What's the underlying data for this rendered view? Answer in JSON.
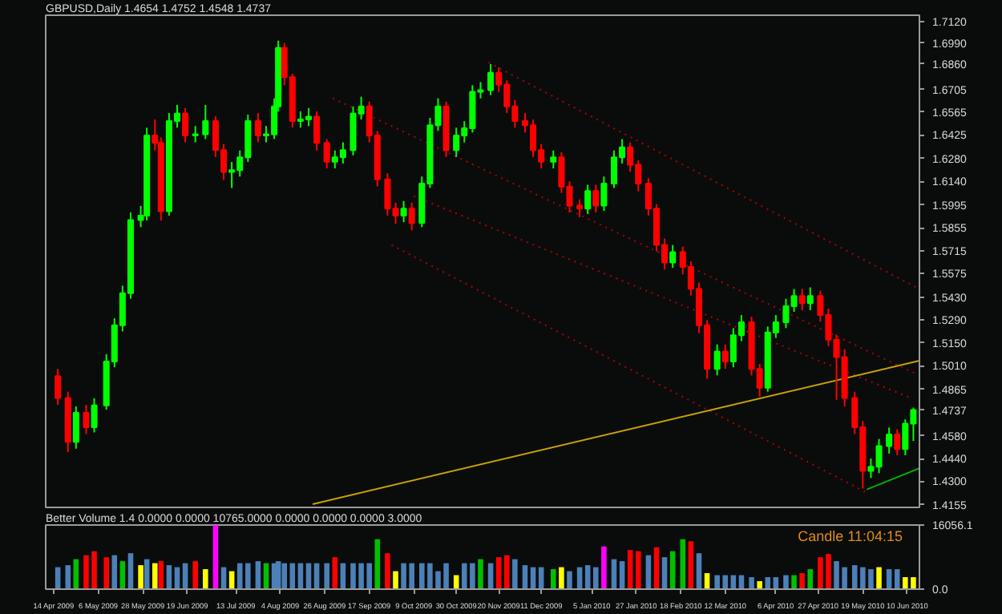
{
  "chart_data": [
    {
      "type": "candlestick",
      "title": "GBPUSD,Daily  1.4654 1.4752 1.4548 1.4737",
      "tick_labels": "y",
      "xlim": [
        "2009-04-10",
        "2010-06-16"
      ],
      "ylim": [
        1.414,
        1.716
      ],
      "yticks": [
        {
          "value": 1.712,
          "label": "1.7120"
        },
        {
          "value": 1.699,
          "label": "1.6990"
        },
        {
          "value": 1.686,
          "label": "1.6860"
        },
        1.6705,
        1.6565,
        1.6425,
        {
          "value": 1.628,
          "label": "1.6280"
        },
        {
          "value": 1.614,
          "label": "1.6140"
        },
        1.5995,
        1.5855,
        1.5715,
        1.5575,
        {
          "value": 1.543,
          "label": "1.5430"
        },
        {
          "value": 1.529,
          "label": "1.5290"
        },
        {
          "value": 1.515,
          "label": "1.5150"
        },
        {
          "value": 1.501,
          "label": "1.5010"
        },
        1.4865,
        1.4737,
        {
          "value": 1.458,
          "label": "1.4580"
        },
        {
          "value": 1.444,
          "label": "1.4440"
        },
        {
          "value": 1.43,
          "label": "1.4300"
        },
        1.4155
      ],
      "x": [
        "2009-04-16",
        "2009-04-21",
        "2009-04-25",
        "2009-04-30",
        "2009-05-04",
        "2009-05-10",
        "2009-05-14",
        "2009-05-18",
        "2009-05-22",
        "2009-05-27",
        "2009-05-30",
        "2009-06-03",
        "2009-06-06",
        "2009-06-10",
        "2009-06-14",
        "2009-06-18",
        "2009-06-23",
        "2009-06-28",
        "2009-07-03",
        "2009-07-07",
        "2009-07-11",
        "2009-07-15",
        "2009-07-19",
        "2009-07-24",
        "2009-07-28",
        "2009-08-01",
        "2009-08-03",
        "2009-08-06",
        "2009-08-10",
        "2009-08-14",
        "2009-08-18",
        "2009-08-22",
        "2009-08-27",
        "2009-08-31",
        "2009-09-04",
        "2009-09-09",
        "2009-09-13",
        "2009-09-17",
        "2009-09-21",
        "2009-09-26",
        "2009-09-30",
        "2009-10-04",
        "2009-10-08",
        "2009-10-13",
        "2009-10-17",
        "2009-10-21",
        "2009-10-25",
        "2009-10-30",
        "2009-11-03",
        "2009-11-07",
        "2009-11-11",
        "2009-11-16",
        "2009-11-20",
        "2009-11-24",
        "2009-11-28",
        "2009-12-03",
        "2009-12-07",
        "2009-12-11",
        "2009-12-17",
        "2009-12-21",
        "2009-12-25",
        "2009-12-30",
        "2010-01-03",
        "2010-01-07",
        "2010-01-11",
        "2010-01-16",
        "2010-01-20",
        "2010-01-24",
        "2010-01-28",
        "2010-02-02",
        "2010-02-06",
        "2010-02-10",
        "2010-02-14",
        "2010-02-19",
        "2010-02-23",
        "2010-02-27",
        "2010-03-03",
        "2010-03-08",
        "2010-03-12",
        "2010-03-16",
        "2010-03-20",
        "2010-03-25",
        "2010-03-29",
        "2010-04-02",
        "2010-04-06",
        "2010-04-11",
        "2010-04-15",
        "2010-04-19",
        "2010-04-23",
        "2010-04-28",
        "2010-05-02",
        "2010-05-06",
        "2010-05-10",
        "2010-05-15",
        "2010-05-19",
        "2010-05-23",
        "2010-05-27",
        "2010-06-01",
        "2010-06-05",
        "2010-06-09",
        "2010-06-13"
      ],
      "ohlc": [
        [
          1.4945,
          1.499,
          1.477,
          1.4811
        ],
        [
          1.4811,
          1.485,
          1.448,
          1.4542
        ],
        [
          1.4542,
          1.476,
          1.45,
          1.4721
        ],
        [
          1.4721,
          1.477,
          1.459,
          1.4632
        ],
        [
          1.4632,
          1.481,
          1.46,
          1.4766
        ],
        [
          1.4766,
          1.508,
          1.474,
          1.5035
        ],
        [
          1.5035,
          1.53,
          1.5,
          1.5258
        ],
        [
          1.5258,
          1.55,
          1.522,
          1.5455
        ],
        [
          1.5455,
          1.595,
          1.542,
          1.5903
        ],
        [
          1.5903,
          1.599,
          1.586,
          1.593
        ],
        [
          1.593,
          1.647,
          1.59,
          1.6422
        ],
        [
          1.6422,
          1.652,
          1.633,
          1.6377
        ],
        [
          1.6377,
          1.641,
          1.59,
          1.5957
        ],
        [
          1.5957,
          1.656,
          1.593,
          1.6511
        ],
        [
          1.6511,
          1.661,
          1.647,
          1.6556
        ],
        [
          1.6556,
          1.659,
          1.638,
          1.6422
        ],
        [
          1.6422,
          1.648,
          1.638,
          1.643
        ],
        [
          1.643,
          1.661,
          1.64,
          1.6511
        ],
        [
          1.6511,
          1.654,
          1.629,
          1.6332
        ],
        [
          1.6332,
          1.637,
          1.615,
          1.6198
        ],
        [
          1.6198,
          1.626,
          1.61,
          1.621
        ],
        [
          1.621,
          1.633,
          1.617,
          1.6288
        ],
        [
          1.6288,
          1.655,
          1.626,
          1.6511
        ],
        [
          1.6511,
          1.656,
          1.638,
          1.6422
        ],
        [
          1.6422,
          1.648,
          1.638,
          1.643
        ],
        [
          1.643,
          1.665,
          1.64,
          1.6601
        ],
        [
          1.6601,
          1.7004,
          1.657,
          1.6959
        ],
        [
          1.6959,
          1.699,
          1.673,
          1.678
        ],
        [
          1.678,
          1.68,
          1.647,
          1.6511
        ],
        [
          1.6511,
          1.657,
          1.647,
          1.652
        ],
        [
          1.652,
          1.659,
          1.648,
          1.6538
        ],
        [
          1.6538,
          1.657,
          1.633,
          1.6377
        ],
        [
          1.6377,
          1.64,
          1.622,
          1.6261
        ],
        [
          1.6261,
          1.633,
          1.622,
          1.6288
        ],
        [
          1.6288,
          1.638,
          1.625,
          1.6332
        ],
        [
          1.6332,
          1.66,
          1.63,
          1.6556
        ],
        [
          1.6556,
          1.666,
          1.652,
          1.6601
        ],
        [
          1.6601,
          1.663,
          1.638,
          1.6422
        ],
        [
          1.6422,
          1.645,
          1.611,
          1.6153
        ],
        [
          1.6153,
          1.619,
          1.593,
          1.5974
        ],
        [
          1.5974,
          1.601,
          1.588,
          1.593
        ],
        [
          1.593,
          1.602,
          1.589,
          1.5974
        ],
        [
          1.5974,
          1.601,
          1.584,
          1.5885
        ],
        [
          1.5885,
          1.617,
          1.586,
          1.6127
        ],
        [
          1.6127,
          1.653,
          1.61,
          1.6485
        ],
        [
          1.6485,
          1.665,
          1.645,
          1.6601
        ],
        [
          1.6601,
          1.663,
          1.629,
          1.6332
        ],
        [
          1.6332,
          1.647,
          1.629,
          1.6422
        ],
        [
          1.6422,
          1.651,
          1.638,
          1.6467
        ],
        [
          1.6467,
          1.673,
          1.644,
          1.669
        ],
        [
          1.669,
          1.675,
          1.665,
          1.67
        ],
        [
          1.67,
          1.686,
          1.667,
          1.6807
        ],
        [
          1.6807,
          1.684,
          1.669,
          1.6735
        ],
        [
          1.6735,
          1.676,
          1.656,
          1.6601
        ],
        [
          1.6601,
          1.664,
          1.647,
          1.6511
        ],
        [
          1.6511,
          1.656,
          1.644,
          1.6485
        ],
        [
          1.6485,
          1.652,
          1.629,
          1.6332
        ],
        [
          1.6332,
          1.637,
          1.622,
          1.6261
        ],
        [
          1.6261,
          1.633,
          1.622,
          1.6288
        ],
        [
          1.6288,
          1.632,
          1.607,
          1.6109
        ],
        [
          1.6109,
          1.614,
          1.595,
          1.5992
        ],
        [
          1.5992,
          1.603,
          1.592,
          1.5974
        ],
        [
          1.5974,
          1.612,
          1.594,
          1.6082
        ],
        [
          1.6082,
          1.612,
          1.595,
          1.5992
        ],
        [
          1.5992,
          1.617,
          1.596,
          1.6127
        ],
        [
          1.6127,
          1.633,
          1.61,
          1.6288
        ],
        [
          1.6288,
          1.64,
          1.625,
          1.635
        ],
        [
          1.635,
          1.638,
          1.62,
          1.6243
        ],
        [
          1.6243,
          1.627,
          1.608,
          1.6127
        ],
        [
          1.6127,
          1.616,
          1.593,
          1.5974
        ],
        [
          1.5974,
          1.6,
          1.571,
          1.5751
        ],
        [
          1.5751,
          1.579,
          1.56,
          1.5643
        ],
        [
          1.5643,
          1.575,
          1.561,
          1.5706
        ],
        [
          1.5706,
          1.574,
          1.557,
          1.5616
        ],
        [
          1.5616,
          1.565,
          1.544,
          1.5482
        ],
        [
          1.5482,
          1.552,
          1.521,
          1.5258
        ],
        [
          1.5258,
          1.529,
          1.493,
          1.499
        ],
        [
          1.499,
          1.514,
          1.495,
          1.5097
        ],
        [
          1.5097,
          1.514,
          1.499,
          1.5035
        ],
        [
          1.5035,
          1.524,
          1.5,
          1.5196
        ],
        [
          1.5196,
          1.532,
          1.516,
          1.5276
        ],
        [
          1.5276,
          1.531,
          1.495,
          1.499
        ],
        [
          1.499,
          1.502,
          1.482,
          1.4874
        ],
        [
          1.4874,
          1.525,
          1.485,
          1.5214
        ],
        [
          1.5214,
          1.532,
          1.518,
          1.5276
        ],
        [
          1.5276,
          1.542,
          1.524,
          1.5375
        ],
        [
          1.5375,
          1.548,
          1.534,
          1.5437
        ],
        [
          1.5437,
          1.548,
          1.535,
          1.5393
        ],
        [
          1.5393,
          1.549,
          1.535,
          1.5437
        ],
        [
          1.5437,
          1.547,
          1.528,
          1.5321
        ],
        [
          1.5321,
          1.536,
          1.513,
          1.5169
        ],
        [
          1.5169,
          1.52,
          1.48,
          1.5062
        ],
        [
          1.5062,
          1.511,
          1.476,
          1.4811
        ],
        [
          1.4811,
          1.485,
          1.459,
          1.4632
        ],
        [
          1.4632,
          1.467,
          1.4256,
          1.4364
        ],
        [
          1.4364,
          1.444,
          1.432,
          1.439
        ],
        [
          1.439,
          1.456,
          1.435,
          1.4516
        ],
        [
          1.4516,
          1.463,
          1.447,
          1.4587
        ],
        [
          1.4587,
          1.462,
          1.446,
          1.4498
        ],
        [
          1.4498,
          1.468,
          1.446,
          1.4654
        ],
        [
          1.4654,
          1.4752,
          1.4548,
          1.4737
        ]
      ],
      "colors": [
        "#ff0000",
        "#ff0000",
        "#00ff00",
        "#ff0000",
        "#00ff00",
        "#00ff00",
        "#00ff00",
        "#00ff00",
        "#00ff00",
        "#00ff00",
        "#00ff00",
        "#ff0000",
        "#ff0000",
        "#00ff00",
        "#00ff00",
        "#ff0000",
        "#00ff00",
        "#00ff00",
        "#ff0000",
        "#ff0000",
        "#00ff00",
        "#00ff00",
        "#00ff00",
        "#ff0000",
        "#00ff00",
        "#00ff00",
        "#00ff00",
        "#ff0000",
        "#ff0000",
        "#00ff00",
        "#00ff00",
        "#ff0000",
        "#ff0000",
        "#00ff00",
        "#00ff00",
        "#00ff00",
        "#00ff00",
        "#ff0000",
        "#ff0000",
        "#ff0000",
        "#ff0000",
        "#00ff00",
        "#ff0000",
        "#00ff00",
        "#00ff00",
        "#00ff00",
        "#ff0000",
        "#00ff00",
        "#00ff00",
        "#00ff00",
        "#00ff00",
        "#00ff00",
        "#ff0000",
        "#ff0000",
        "#ff0000",
        "#ff0000",
        "#ff0000",
        "#ff0000",
        "#00ff00",
        "#ff0000",
        "#ff0000",
        "#ff0000",
        "#00ff00",
        "#ff0000",
        "#00ff00",
        "#00ff00",
        "#00ff00",
        "#ff0000",
        "#ff0000",
        "#ff0000",
        "#ff0000",
        "#ff0000",
        "#00ff00",
        "#ff0000",
        "#ff0000",
        "#ff0000",
        "#ff0000",
        "#00ff00",
        "#ff0000",
        "#00ff00",
        "#00ff00",
        "#ff0000",
        "#ff0000",
        "#00ff00",
        "#00ff00",
        "#00ff00",
        "#00ff00",
        "#ff0000",
        "#00ff00",
        "#ff0000",
        "#ff0000",
        "#ff0000",
        "#ff0000",
        "#ff0000",
        "#ff0000",
        "#00ff00",
        "#00ff00",
        "#00ff00",
        "#ff0000",
        "#00ff00",
        "#00ff00"
      ],
      "series": [
        {
          "type": "line",
          "x": [
            "2009-11-15",
            "2010-06-16"
          ],
          "values": [
            1.687,
            1.548
          ],
          "color": "#b00000",
          "line_style": "dotted"
        },
        {
          "type": "line",
          "x": [
            "2009-08-30",
            "2010-06-16"
          ],
          "values": [
            1.665,
            1.495
          ],
          "color": "#b00000",
          "line_style": "dotted"
        },
        {
          "type": "line",
          "x": [
            "2009-10-09",
            "2010-06-12"
          ],
          "values": [
            1.605,
            1.481
          ],
          "color": "#b00000",
          "line_style": "dotted"
        },
        {
          "type": "line",
          "x": [
            "2009-09-28",
            "2010-05-21"
          ],
          "values": [
            1.575,
            1.423
          ],
          "color": "#b00000",
          "line_style": "dotted"
        },
        {
          "type": "line",
          "x": [
            "2009-08-20",
            "2010-06-16"
          ],
          "values": [
            1.416,
            1.504
          ],
          "color": "#c8a000",
          "line_style": "solid"
        },
        {
          "type": "line",
          "x": [
            "2010-05-21",
            "2010-06-16"
          ],
          "values": [
            1.425,
            1.438
          ],
          "color": "#00b000",
          "line_style": "solid"
        }
      ]
    },
    {
      "type": "bar",
      "title": "Better Volume 1.4 0.0000 0.0000 10765.0000 0.0000 0.0000 0.0000 3.0000",
      "annotations": [
        "Candle  11:04:15"
      ],
      "xlim": [
        "2009-04-10",
        "2010-06-16"
      ],
      "xticks": [
        {
          "value": "2009-04-14",
          "label": "14 Apr 2009"
        },
        {
          "value": "2009-05-06",
          "label": "6 May 2009"
        },
        {
          "value": "2009-05-28",
          "label": "28 May 2009"
        },
        {
          "value": "2009-06-19",
          "label": "19 Jun 2009"
        },
        {
          "value": "2009-07-13",
          "label": "13 Jul 2009"
        },
        {
          "value": "2009-08-04",
          "label": "4 Aug 2009"
        },
        {
          "value": "2009-08-26",
          "label": "26 Aug 2009"
        },
        {
          "value": "2009-09-17",
          "label": "17 Sep 2009"
        },
        {
          "value": "2009-10-09",
          "label": "9 Oct 2009"
        },
        {
          "value": "2009-10-30",
          "label": "30 Oct 2009"
        },
        {
          "value": "2009-11-20",
          "label": "20 Nov 2009"
        },
        {
          "value": "2009-12-11",
          "label": "11 Dec 2009"
        },
        {
          "value": "2010-01-05",
          "label": "5 Jan 2010"
        },
        {
          "value": "2010-01-27",
          "label": "27 Jan 2010"
        },
        {
          "value": "2010-02-18",
          "label": "18 Feb 2010"
        },
        {
          "value": "2010-03-12",
          "label": "12 Mar 2010"
        },
        {
          "value": "2010-04-06",
          "label": "6 Apr 2010"
        },
        {
          "value": "2010-04-27",
          "label": "27 Apr 2010"
        },
        {
          "value": "2010-05-19",
          "label": "19 May 2010"
        },
        {
          "value": "2010-06-10",
          "label": "10 Jun 2010"
        }
      ],
      "ylim": [
        0,
        16056.1
      ],
      "yticks": [
        16056.1,
        {
          "value": 0,
          "label": "0.0"
        }
      ],
      "x": [
        "2009-04-16",
        "2009-04-21",
        "2009-04-25",
        "2009-04-30",
        "2009-05-04",
        "2009-05-10",
        "2009-05-14",
        "2009-05-18",
        "2009-05-22",
        "2009-05-27",
        "2009-05-30",
        "2009-06-03",
        "2009-06-06",
        "2009-06-10",
        "2009-06-14",
        "2009-06-18",
        "2009-06-23",
        "2009-06-28",
        "2009-07-03",
        "2009-07-07",
        "2009-07-11",
        "2009-07-15",
        "2009-07-19",
        "2009-07-24",
        "2009-07-28",
        "2009-08-01",
        "2009-08-03",
        "2009-08-06",
        "2009-08-10",
        "2009-08-14",
        "2009-08-18",
        "2009-08-22",
        "2009-08-27",
        "2009-08-31",
        "2009-09-04",
        "2009-09-09",
        "2009-09-13",
        "2009-09-17",
        "2009-09-21",
        "2009-09-26",
        "2009-09-30",
        "2009-10-04",
        "2009-10-08",
        "2009-10-13",
        "2009-10-17",
        "2009-10-21",
        "2009-10-25",
        "2009-10-30",
        "2009-11-03",
        "2009-11-07",
        "2009-11-11",
        "2009-11-16",
        "2009-11-20",
        "2009-11-24",
        "2009-11-28",
        "2009-12-03",
        "2009-12-07",
        "2009-12-11",
        "2009-12-17",
        "2009-12-21",
        "2009-12-25",
        "2009-12-30",
        "2010-01-03",
        "2010-01-07",
        "2010-01-11",
        "2010-01-16",
        "2010-01-20",
        "2010-01-24",
        "2010-01-28",
        "2010-02-02",
        "2010-02-06",
        "2010-02-10",
        "2010-02-14",
        "2010-02-19",
        "2010-02-23",
        "2010-02-27",
        "2010-03-03",
        "2010-03-08",
        "2010-03-12",
        "2010-03-16",
        "2010-03-20",
        "2010-03-25",
        "2010-03-29",
        "2010-04-02",
        "2010-04-06",
        "2010-04-11",
        "2010-04-15",
        "2010-04-19",
        "2010-04-23",
        "2010-04-28",
        "2010-05-02",
        "2010-05-06",
        "2010-05-10",
        "2010-05-15",
        "2010-05-19",
        "2010-05-23",
        "2010-05-27",
        "2010-06-01",
        "2010-06-05",
        "2010-06-09",
        "2010-06-13"
      ],
      "values": [
        5500,
        6000,
        7500,
        8500,
        9500,
        8000,
        8500,
        7000,
        9000,
        6000,
        7500,
        6500,
        7000,
        6000,
        5500,
        6500,
        7000,
        5000,
        16000,
        5500,
        4500,
        6500,
        6500,
        7000,
        6500,
        6500,
        7000,
        6500,
        6500,
        6500,
        6500,
        6500,
        6500,
        8000,
        6500,
        6500,
        6500,
        6500,
        12500,
        9000,
        4500,
        6500,
        6500,
        6500,
        6500,
        4500,
        6500,
        3500,
        6500,
        6500,
        7500,
        6500,
        8000,
        8500,
        7500,
        6000,
        5500,
        5500,
        5000,
        5500,
        4500,
        5500,
        6000,
        5500,
        10700,
        7500,
        7000,
        9800,
        9500,
        8500,
        10500,
        8000,
        9500,
        12500,
        12000,
        9000,
        4000,
        3500,
        3500,
        3500,
        3500,
        3000,
        2000,
        3000,
        3000,
        3500,
        3500,
        4000,
        5000,
        8000,
        8800,
        7000,
        5500,
        6000,
        5500,
        5000,
        5500,
        5000,
        5000,
        3000,
        3000
      ],
      "colors": [
        "#4c80b8",
        "#4c80b8",
        "#00c000",
        "#ff0000",
        "#ff0000",
        "#ff0000",
        "#4c80b8",
        "#00c000",
        "#4c80b8",
        "#ffff00",
        "#4c80b8",
        "#ffff00",
        "#ff0000",
        "#4c80b8",
        "#4c80b8",
        "#4c80b8",
        "#ff0000",
        "#ffff00",
        "#ff00ff",
        "#4c80b8",
        "#ffff00",
        "#4c80b8",
        "#4c80b8",
        "#4c80b8",
        "#00c000",
        "#4c80b8",
        "#4c80b8",
        "#4c80b8",
        "#4c80b8",
        "#4c80b8",
        "#4c80b8",
        "#4c80b8",
        "#4c80b8",
        "#ff0000",
        "#4c80b8",
        "#4c80b8",
        "#4c80b8",
        "#4c80b8",
        "#00c000",
        "#ff0000",
        "#ffff00",
        "#4c80b8",
        "#4c80b8",
        "#4c80b8",
        "#4c80b8",
        "#4c80b8",
        "#4c80b8",
        "#ffff00",
        "#4c80b8",
        "#4c80b8",
        "#00c000",
        "#4c80b8",
        "#ff0000",
        "#ff0000",
        "#4c80b8",
        "#4c80b8",
        "#4c80b8",
        "#4c80b8",
        "#00c000",
        "#ffff00",
        "#4c80b8",
        "#4c80b8",
        "#4c80b8",
        "#4c80b8",
        "#ff00ff",
        "#4c80b8",
        "#4c80b8",
        "#ff0000",
        "#ff0000",
        "#4c80b8",
        "#ff0000",
        "#4c80b8",
        "#00c000",
        "#00c000",
        "#ff0000",
        "#4c80b8",
        "#ffff00",
        "#4c80b8",
        "#4c80b8",
        "#4c80b8",
        "#4c80b8",
        "#4c80b8",
        "#ffff00",
        "#4c80b8",
        "#4c80b8",
        "#4c80b8",
        "#00c000",
        "#ff0000",
        "#00c000",
        "#ff0000",
        "#ff0000",
        "#4c80b8",
        "#4c80b8",
        "#4c80b8",
        "#4c80b8",
        "#4c80b8",
        "#ffff00",
        "#4c80b8",
        "#4c80b8",
        "#ffff00",
        "#ffff00"
      ]
    }
  ]
}
